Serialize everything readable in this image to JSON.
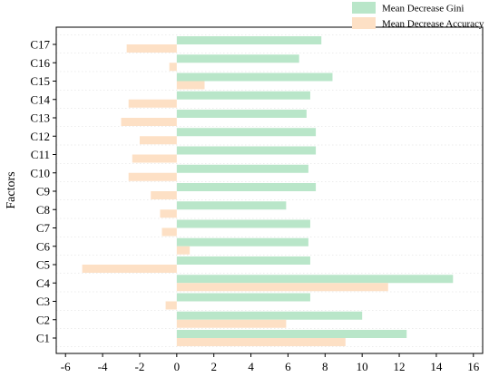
{
  "chart_data": {
    "type": "bar",
    "orientation": "horizontal",
    "title": "",
    "xlabel": "",
    "ylabel": "Factors",
    "xlim": [
      -6.5,
      16.5
    ],
    "xticks": [
      -6,
      -4,
      -2,
      0,
      2,
      4,
      6,
      8,
      10,
      12,
      14,
      16
    ],
    "grid": "horizontal dotted",
    "legend_position": "top-right",
    "categories": [
      "C17",
      "C16",
      "C15",
      "C14",
      "C13",
      "C12",
      "C11",
      "C10",
      "C9",
      "C8",
      "C7",
      "C6",
      "C5",
      "C4",
      "C3",
      "C2",
      "C1"
    ],
    "series": [
      {
        "name": "Mean Decrease Gini",
        "color": "#b9e6c9",
        "values": [
          7.8,
          6.6,
          8.4,
          7.2,
          7.0,
          7.5,
          7.5,
          7.1,
          7.5,
          5.9,
          7.2,
          7.1,
          7.2,
          14.9,
          7.2,
          10.0,
          12.4
        ]
      },
      {
        "name": "Mean Decrease Accuracy",
        "color": "#fde0c5",
        "values": [
          -2.7,
          -0.4,
          1.5,
          -2.6,
          -3.0,
          -2.0,
          -2.4,
          -2.6,
          -1.4,
          -0.9,
          -0.8,
          0.7,
          -5.1,
          11.4,
          -0.6,
          5.9,
          9.1
        ]
      }
    ]
  }
}
